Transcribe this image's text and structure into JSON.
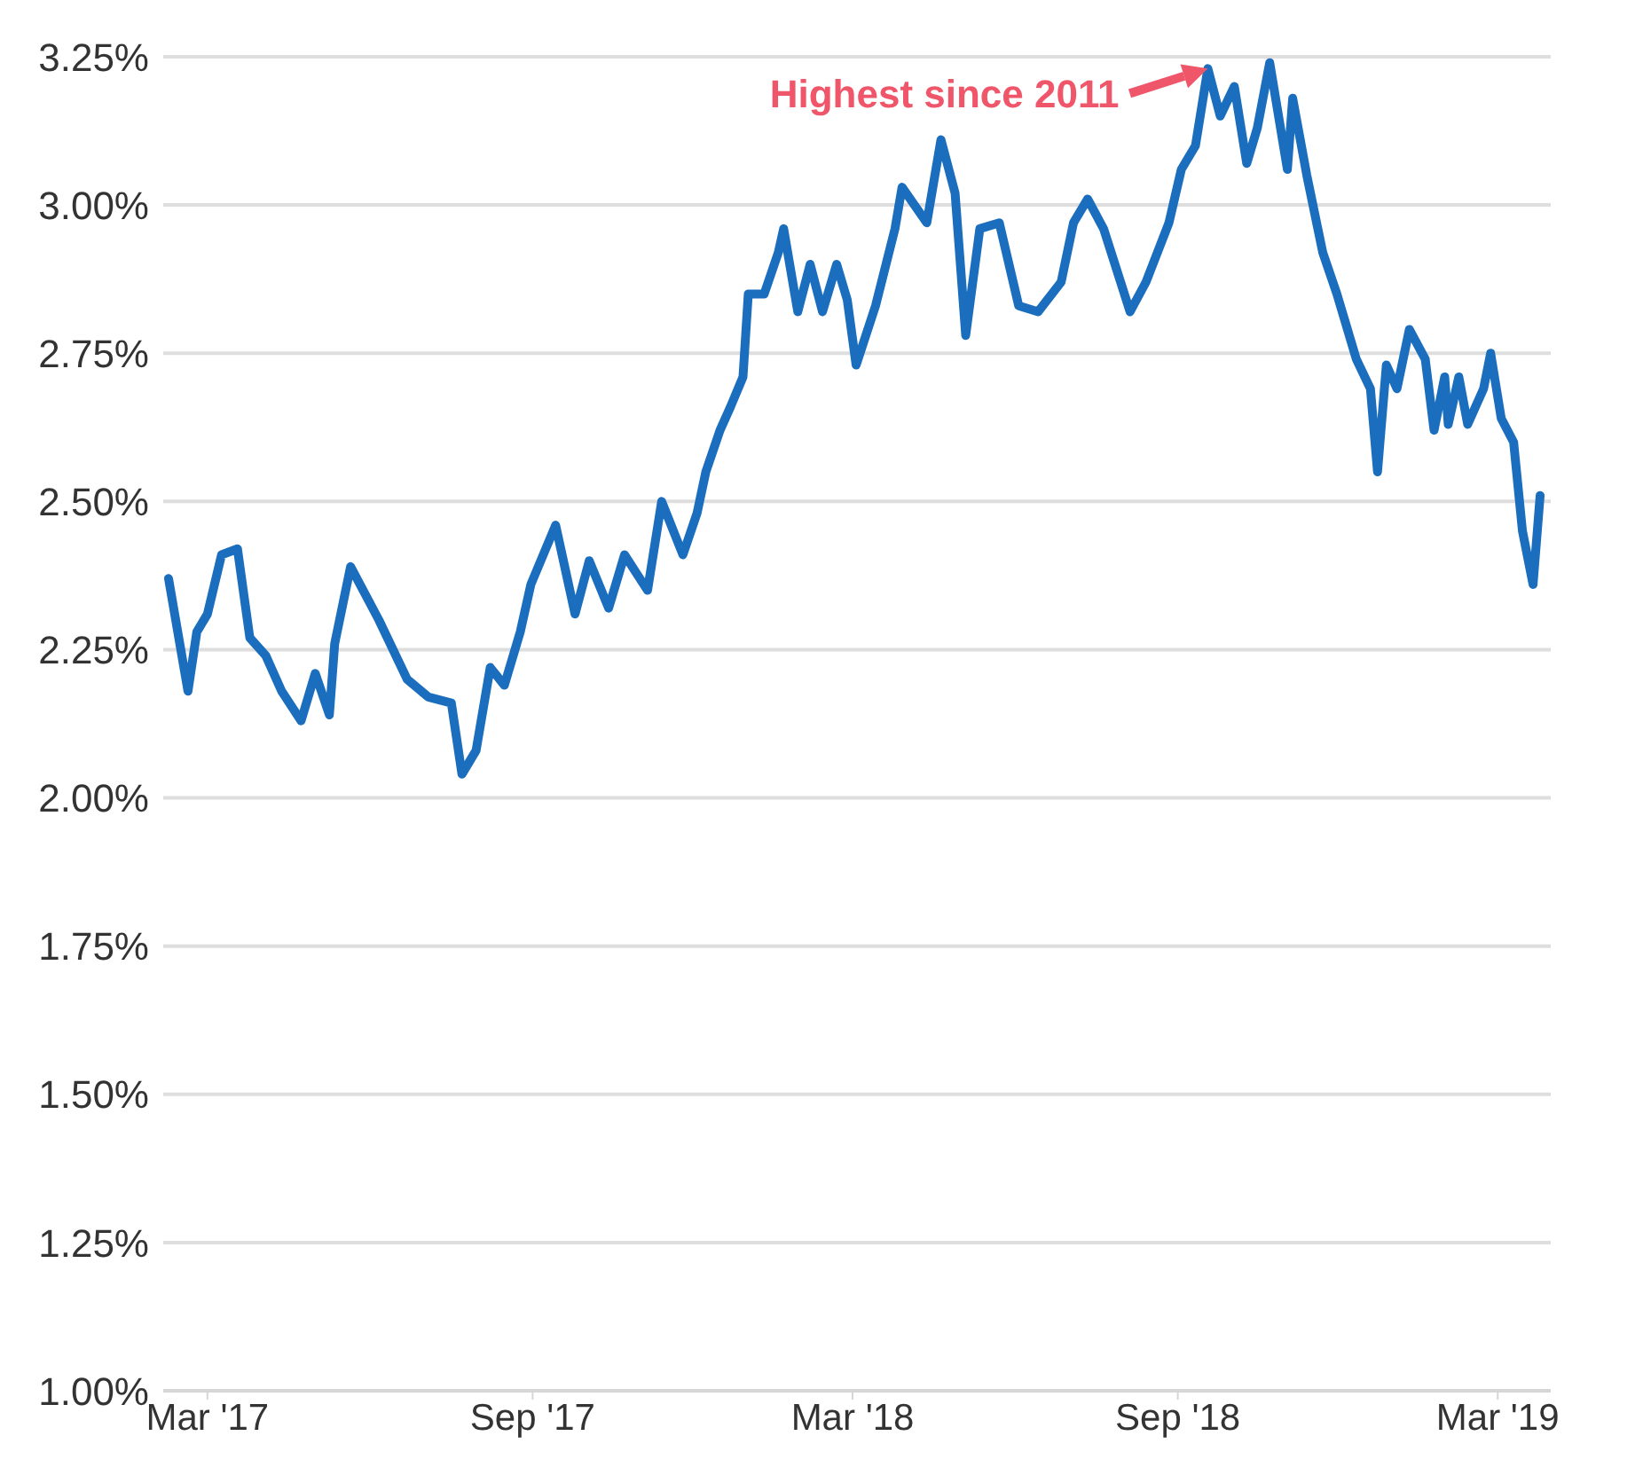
{
  "chart_data": {
    "type": "line",
    "xlim": [
      "2017-02-04",
      "2019-03-31"
    ],
    "xticks": [
      {
        "value": "2017-03-01",
        "label": "Mar '17"
      },
      {
        "value": "2017-09-01",
        "label": "Sep '17"
      },
      {
        "value": "2018-03-01",
        "label": "Mar '18"
      },
      {
        "value": "2018-09-01",
        "label": "Sep '18"
      },
      {
        "value": "2019-03-01",
        "label": "Mar '19"
      }
    ],
    "ylim": [
      1.0,
      3.25
    ],
    "yticks": [
      {
        "value": 1.0,
        "label": "1.00%"
      },
      {
        "value": 1.25,
        "label": "1.25%"
      },
      {
        "value": 1.5,
        "label": "1.50%"
      },
      {
        "value": 1.75,
        "label": "1.75%"
      },
      {
        "value": 2.0,
        "label": "2.00%"
      },
      {
        "value": 2.25,
        "label": "2.25%"
      },
      {
        "value": 2.5,
        "label": "2.50%"
      },
      {
        "value": 2.75,
        "label": "2.75%"
      },
      {
        "value": 3.0,
        "label": "3.00%"
      },
      {
        "value": 3.25,
        "label": "3.25%"
      }
    ],
    "grid": "y",
    "marker": "none",
    "line_style": "solid",
    "annotations": [
      {
        "text": "Highest since 2011",
        "x": "2018-09-18",
        "y": 3.23
      }
    ],
    "x": [
      "2017-02-07",
      "2017-02-18",
      "2017-02-23",
      "2017-03-01",
      "2017-03-09",
      "2017-03-18",
      "2017-03-25",
      "2017-04-03",
      "2017-04-12",
      "2017-04-23",
      "2017-05-01",
      "2017-05-09",
      "2017-05-12",
      "2017-05-21",
      "2017-06-06",
      "2017-06-22",
      "2017-07-04",
      "2017-07-17",
      "2017-07-23",
      "2017-07-31",
      "2017-08-08",
      "2017-08-16",
      "2017-08-25",
      "2017-08-31",
      "2017-09-14",
      "2017-09-25",
      "2017-10-03",
      "2017-10-14",
      "2017-10-23",
      "2017-11-05",
      "2017-11-13",
      "2017-11-25",
      "2017-12-03",
      "2017-12-08",
      "2017-12-16",
      "2017-12-22",
      "2017-12-29",
      "2018-01-01",
      "2018-01-10",
      "2018-01-18",
      "2018-01-21",
      "2018-01-29",
      "2018-02-05",
      "2018-02-12",
      "2018-02-20",
      "2018-02-26",
      "2018-03-03",
      "2018-03-14",
      "2018-03-25",
      "2018-03-29",
      "2018-04-12",
      "2018-04-20",
      "2018-04-28",
      "2018-05-04",
      "2018-05-12",
      "2018-05-23",
      "2018-06-03",
      "2018-06-14",
      "2018-06-27",
      "2018-07-04",
      "2018-07-12",
      "2018-07-21",
      "2018-08-05",
      "2018-08-14",
      "2018-08-27",
      "2018-09-03",
      "2018-09-11",
      "2018-09-18",
      "2018-09-25",
      "2018-10-03",
      "2018-10-10",
      "2018-10-16",
      "2018-10-23",
      "2018-11-02",
      "2018-11-05",
      "2018-11-13",
      "2018-11-22",
      "2018-11-30",
      "2018-12-11",
      "2018-12-19",
      "2018-12-23",
      "2018-12-28",
      "2019-01-03",
      "2019-01-10",
      "2019-01-19",
      "2019-01-24",
      "2019-01-30",
      "2019-02-01",
      "2019-02-07",
      "2019-02-12",
      "2019-02-21",
      "2019-02-25",
      "2019-03-03",
      "2019-03-10",
      "2019-03-15",
      "2019-03-21",
      "2019-03-25"
    ],
    "series": [
      {
        "color": "#1b6ebd",
        "values": [
          2.37,
          2.18,
          2.28,
          2.31,
          2.41,
          2.42,
          2.27,
          2.24,
          2.18,
          2.13,
          2.21,
          2.14,
          2.26,
          2.39,
          2.3,
          2.2,
          2.17,
          2.16,
          2.04,
          2.08,
          2.22,
          2.19,
          2.28,
          2.36,
          2.46,
          2.31,
          2.4,
          2.32,
          2.41,
          2.35,
          2.5,
          2.41,
          2.48,
          2.55,
          2.62,
          2.66,
          2.71,
          2.85,
          2.85,
          2.92,
          2.96,
          2.82,
          2.9,
          2.82,
          2.9,
          2.84,
          2.73,
          2.83,
          2.96,
          3.03,
          2.97,
          3.11,
          3.02,
          2.78,
          2.96,
          2.97,
          2.83,
          2.82,
          2.87,
          2.97,
          3.01,
          2.96,
          2.82,
          2.87,
          2.97,
          3.06,
          3.1,
          3.23,
          3.15,
          3.2,
          3.07,
          3.13,
          3.24,
          3.06,
          3.18,
          3.05,
          2.92,
          2.85,
          2.74,
          2.69,
          2.55,
          2.73,
          2.69,
          2.79,
          2.74,
          2.62,
          2.71,
          2.63,
          2.71,
          2.63,
          2.69,
          2.75,
          2.64,
          2.6,
          2.45,
          2.36,
          2.51
        ]
      }
    ]
  }
}
